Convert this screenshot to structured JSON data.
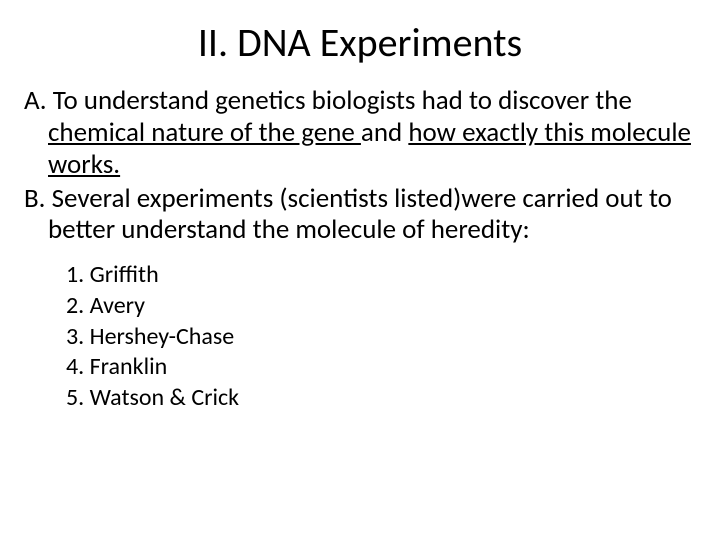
{
  "slide": {
    "title": "II. DNA Experiments",
    "pointA": {
      "prefix": "A. To understand genetics biologists had to discover the ",
      "u1": "chemical nature of the gene ",
      "mid": "and ",
      "u2": "how exactly this molecule works."
    },
    "pointB": "B. Several experiments (scientists listed)were carried out to better understand the molecule of heredity:",
    "scientists": {
      "s1": "1. Griffith",
      "s2": "2. Avery",
      "s3": "3. Hershey-Chase",
      "s4": "4. Franklin",
      "s5": "5. Watson & Crick"
    }
  },
  "style": {
    "background": "#ffffff",
    "text_color": "#000000",
    "title_fontsize": 40,
    "body_fontsize": 27,
    "sublist_fontsize": 24,
    "font_family": "Calibri, Arial, sans-serif"
  }
}
